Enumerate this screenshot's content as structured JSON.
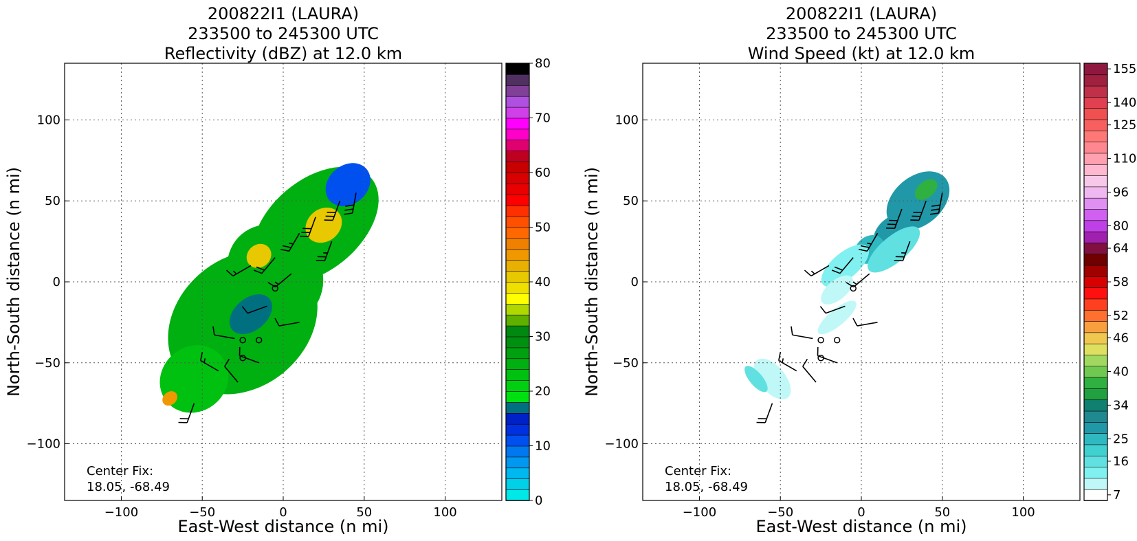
{
  "chart_data": [
    {
      "type": "heatmap",
      "title_lines": [
        "200822I1 (LAURA)",
        "233500 to 245300 UTC",
        "Reflectivity (dBZ) at 12.0 km"
      ],
      "xlabel": "East-West distance (n mi)",
      "ylabel": "North-South distance (n mi)",
      "xlim": [
        -135,
        135
      ],
      "ylim": [
        -135,
        135
      ],
      "x_ticks": [
        "-100",
        "-50",
        "0",
        "50",
        "100"
      ],
      "y_ticks": [
        "-100",
        "-50",
        "0",
        "50",
        "100"
      ],
      "grid": true,
      "annotation_lines": [
        "Center Fix:",
        "18.05, -68.49"
      ],
      "colorbar": {
        "label_values": [
          "0",
          "10",
          "20",
          "30",
          "40",
          "50",
          "60",
          "70",
          "80"
        ],
        "range": [
          0,
          80
        ],
        "colors": [
          "#00e8e8",
          "#00d0e8",
          "#00b8f0",
          "#0098f0",
          "#0078f0",
          "#0050f0",
          "#0030e0",
          "#0020c8",
          "#007080",
          "#00e010",
          "#00d010",
          "#00c010",
          "#00b010",
          "#00a010",
          "#009010",
          "#008810",
          "#60b000",
          "#b0d800",
          "#ffff00",
          "#f0e000",
          "#e8c800",
          "#e8b000",
          "#f09800",
          "#f08000",
          "#ff6800",
          "#ff5000",
          "#ff3000",
          "#ff0000",
          "#e80000",
          "#d80000",
          "#c80000",
          "#c00020",
          "#e00070",
          "#ff00c8",
          "#ff00ff",
          "#d040e8",
          "#b050e0",
          "#804098",
          "#503060",
          "#000000"
        ]
      },
      "field_patches": [
        {
          "x": -25,
          "y": -25,
          "rx": 50,
          "ry": 40,
          "level": 12
        },
        {
          "x": 20,
          "y": 35,
          "rx": 45,
          "ry": 28,
          "level": 12
        },
        {
          "x": -5,
          "y": 5,
          "rx": 28,
          "ry": 32,
          "level": 12
        },
        {
          "x": -55,
          "y": -60,
          "rx": 22,
          "ry": 20,
          "level": 11
        },
        {
          "x": 40,
          "y": 60,
          "rx": 15,
          "ry": 12,
          "level": 5
        },
        {
          "x": 25,
          "y": 35,
          "rx": 12,
          "ry": 10,
          "level": 20
        },
        {
          "x": -15,
          "y": 16,
          "rx": 8,
          "ry": 7,
          "level": 20
        },
        {
          "x": -70,
          "y": -72,
          "rx": 5,
          "ry": 4,
          "level": 22
        },
        {
          "x": -20,
          "y": -20,
          "rx": 15,
          "ry": 10,
          "level": 8
        }
      ],
      "wind_barbs": [
        {
          "x": 20,
          "y": 40,
          "dir": 200,
          "kt": 30
        },
        {
          "x": 35,
          "y": 50,
          "dir": 200,
          "kt": 30
        },
        {
          "x": 45,
          "y": 55,
          "dir": 190,
          "kt": 30
        },
        {
          "x": 30,
          "y": 25,
          "dir": 200,
          "kt": 25
        },
        {
          "x": 10,
          "y": 30,
          "dir": 210,
          "kt": 25
        },
        {
          "x": -5,
          "y": 15,
          "dir": 220,
          "kt": 20
        },
        {
          "x": -20,
          "y": 10,
          "dir": 240,
          "kt": 15
        },
        {
          "x": 5,
          "y": 5,
          "dir": 230,
          "kt": 15
        },
        {
          "x": -10,
          "y": -15,
          "dir": 250,
          "kt": 10
        },
        {
          "x": 10,
          "y": -25,
          "dir": 260,
          "kt": 10
        },
        {
          "x": -30,
          "y": -35,
          "dir": 280,
          "kt": 10
        },
        {
          "x": -40,
          "y": -55,
          "dir": 300,
          "kt": 15
        },
        {
          "x": -55,
          "y": -75,
          "dir": 200,
          "kt": 20
        },
        {
          "x": -28,
          "y": -62,
          "dir": 320,
          "kt": 10
        },
        {
          "x": -15,
          "y": -50,
          "dir": 290,
          "kt": 10
        }
      ],
      "calm_circles": [
        {
          "x": -5,
          "y": -4
        },
        {
          "x": -25,
          "y": -36
        },
        {
          "x": -15,
          "y": -36
        },
        {
          "x": -25,
          "y": -47
        }
      ]
    },
    {
      "type": "heatmap",
      "title_lines": [
        "200822I1 (LAURA)",
        "233500 to 245300 UTC",
        "Wind Speed (kt) at 12.0 km"
      ],
      "xlabel": "East-West distance (n mi)",
      "ylabel": "North-South distance (n mi)",
      "xlim": [
        -135,
        135
      ],
      "ylim": [
        -135,
        135
      ],
      "x_ticks": [
        "-100",
        "-50",
        "0",
        "50",
        "100"
      ],
      "y_ticks": [
        "-100",
        "-50",
        "0",
        "50",
        "100"
      ],
      "grid": true,
      "annotation_lines": [
        "Center Fix:",
        "18.05, -68.49"
      ],
      "colorbar": {
        "label_values": [
          "7",
          "16",
          "25",
          "34",
          "40",
          "46",
          "52",
          "58",
          "64",
          "80",
          "96",
          "110",
          "125",
          "140",
          "155"
        ],
        "colors": [
          "#ffffff",
          "#c0f8f8",
          "#80f0f0",
          "#60e0e0",
          "#40d0d0",
          "#30b8c0",
          "#2098a8",
          "#208890",
          "#108070",
          "#20a040",
          "#30b040",
          "#70c850",
          "#a0d860",
          "#e0e060",
          "#f0c850",
          "#f8a040",
          "#ff7030",
          "#ff4020",
          "#ff1010",
          "#d80000",
          "#a00000",
          "#700000",
          "#801040",
          "#a020b0",
          "#c040e8",
          "#d060f0",
          "#e090f0",
          "#f0b8f0",
          "#f8c8e8",
          "#ffb8d0",
          "#ffa0b0",
          "#ff8890",
          "#ff7878",
          "#f86060",
          "#f05050",
          "#e04050",
          "#c03048",
          "#a02040",
          "#901840"
        ]
      },
      "field_patches": [
        {
          "x": 35,
          "y": 50,
          "rx": 22,
          "ry": 15,
          "level": 6
        },
        {
          "x": 20,
          "y": 30,
          "rx": 14,
          "ry": 10,
          "level": 6
        },
        {
          "x": 5,
          "y": 20,
          "rx": 10,
          "ry": 8,
          "level": 5
        },
        {
          "x": 20,
          "y": 20,
          "rx": 20,
          "ry": 8,
          "level": 3
        },
        {
          "x": -10,
          "y": 10,
          "rx": 18,
          "ry": 8,
          "level": 2
        },
        {
          "x": -15,
          "y": -5,
          "rx": 12,
          "ry": 6,
          "level": 1
        },
        {
          "x": -15,
          "y": -22,
          "rx": 15,
          "ry": 5,
          "level": 1
        },
        {
          "x": -55,
          "y": -60,
          "rx": 8,
          "ry": 15,
          "level": 1
        },
        {
          "x": -65,
          "y": -60,
          "rx": 4,
          "ry": 10,
          "level": 3
        },
        {
          "x": 40,
          "y": 57,
          "rx": 8,
          "ry": 5,
          "level": 10
        }
      ],
      "wind_barbs": [
        {
          "x": 25,
          "y": 45,
          "dir": 200,
          "kt": 30
        },
        {
          "x": 40,
          "y": 50,
          "dir": 200,
          "kt": 30
        },
        {
          "x": 50,
          "y": 55,
          "dir": 190,
          "kt": 30
        },
        {
          "x": 30,
          "y": 25,
          "dir": 200,
          "kt": 25
        },
        {
          "x": 10,
          "y": 30,
          "dir": 210,
          "kt": 25
        },
        {
          "x": -5,
          "y": 15,
          "dir": 220,
          "kt": 20
        },
        {
          "x": -20,
          "y": 10,
          "dir": 240,
          "kt": 15
        },
        {
          "x": 5,
          "y": 5,
          "dir": 230,
          "kt": 15
        },
        {
          "x": -10,
          "y": -15,
          "dir": 250,
          "kt": 10
        },
        {
          "x": 10,
          "y": -25,
          "dir": 260,
          "kt": 10
        },
        {
          "x": -30,
          "y": -35,
          "dir": 280,
          "kt": 10
        },
        {
          "x": -40,
          "y": -55,
          "dir": 300,
          "kt": 15
        },
        {
          "x": -55,
          "y": -75,
          "dir": 200,
          "kt": 20
        },
        {
          "x": -28,
          "y": -62,
          "dir": 320,
          "kt": 10
        },
        {
          "x": -15,
          "y": -50,
          "dir": 290,
          "kt": 10
        }
      ],
      "calm_circles": [
        {
          "x": -5,
          "y": -4
        },
        {
          "x": -25,
          "y": -36
        },
        {
          "x": -15,
          "y": -36
        },
        {
          "x": -25,
          "y": -47
        }
      ]
    }
  ]
}
